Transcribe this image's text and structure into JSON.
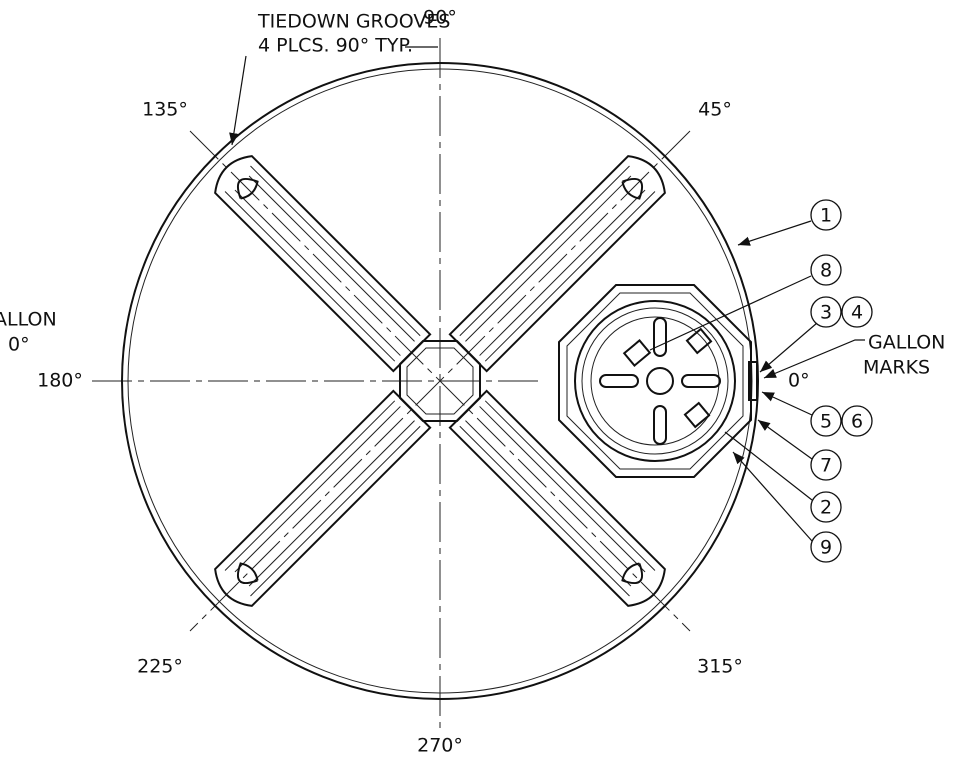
{
  "notes": {
    "tiedown_line1": "TIEDOWN GROOVES",
    "tiedown_line2": "4 PLCS. 90° TYP.",
    "gallon_left": "ALLON",
    "gallon_left_angle": "0°",
    "gallon_right": "GALLON",
    "marks_right": "MARKS",
    "gallon_right_angle": "0°"
  },
  "angles": {
    "a90": "90°",
    "a45": "45°",
    "a135": "135°",
    "a180": "180°",
    "a225": "225°",
    "a315": "315°",
    "a270": "270°"
  },
  "balloons": [
    "1",
    "8",
    "3",
    "4",
    "5",
    "6",
    "7",
    "2",
    "9"
  ]
}
